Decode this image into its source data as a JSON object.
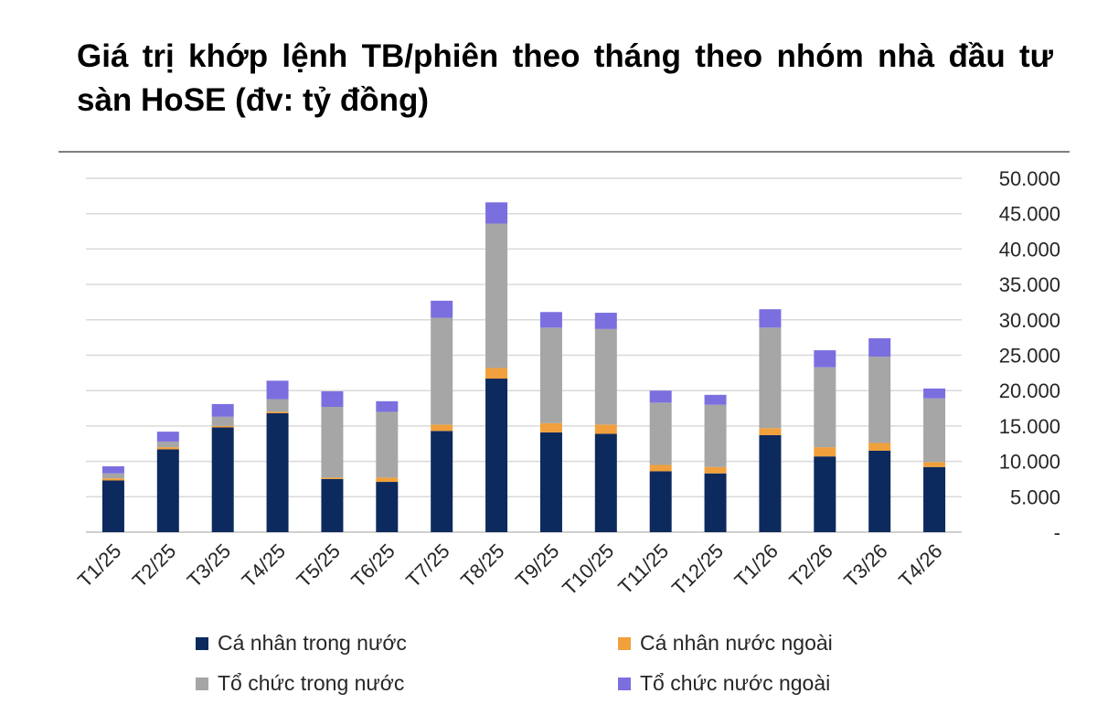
{
  "title": "Giá trị khớp lệnh TB/phiên theo tháng theo nhóm nhà đầu tư sàn HoSE (đv: tỷ đồng)",
  "chart_data": {
    "type": "bar",
    "stacked": true,
    "categories": [
      "T1/25",
      "T2/25",
      "T3/25",
      "T4/25",
      "T5/25",
      "T6/25",
      "T7/25",
      "T8/25",
      "T9/25",
      "T10/25",
      "T11/25",
      "T12/25",
      "T1/26",
      "T2/26",
      "T3/26",
      "T4/26"
    ],
    "series": [
      {
        "name": "Cá nhân trong nước",
        "color": "#0d2a5e",
        "values": [
          7300,
          11700,
          14800,
          16800,
          7500,
          7100,
          14300,
          21700,
          14100,
          13900,
          8600,
          8300,
          13700,
          10700,
          11500,
          9200
        ]
      },
      {
        "name": "Cá nhân nước ngoài",
        "color": "#f0a03c",
        "values": [
          300,
          300,
          200,
          200,
          200,
          600,
          900,
          1500,
          1300,
          1300,
          900,
          900,
          1000,
          1300,
          1100,
          700
        ]
      },
      {
        "name": "Tổ chức trong nước",
        "color": "#a6a6a6",
        "values": [
          700,
          800,
          1300,
          1800,
          10000,
          9300,
          15100,
          20400,
          13500,
          13500,
          8800,
          8800,
          14200,
          11300,
          12200,
          9000
        ]
      },
      {
        "name": "Tổ chức nước ngoài",
        "color": "#7b6fe0",
        "values": [
          1000,
          1400,
          1800,
          2600,
          2200,
          1500,
          2400,
          3000,
          2200,
          2300,
          1700,
          1400,
          2600,
          2400,
          2600,
          1400
        ]
      }
    ],
    "y_ticks": [
      "-",
      "5.000",
      "10.000",
      "15.000",
      "20.000",
      "25.000",
      "30.000",
      "35.000",
      "40.000",
      "45.000",
      "50.000"
    ],
    "ylim": [
      0,
      50000
    ],
    "y_axis_side": "right",
    "grid": true,
    "legend_position": "bottom"
  }
}
